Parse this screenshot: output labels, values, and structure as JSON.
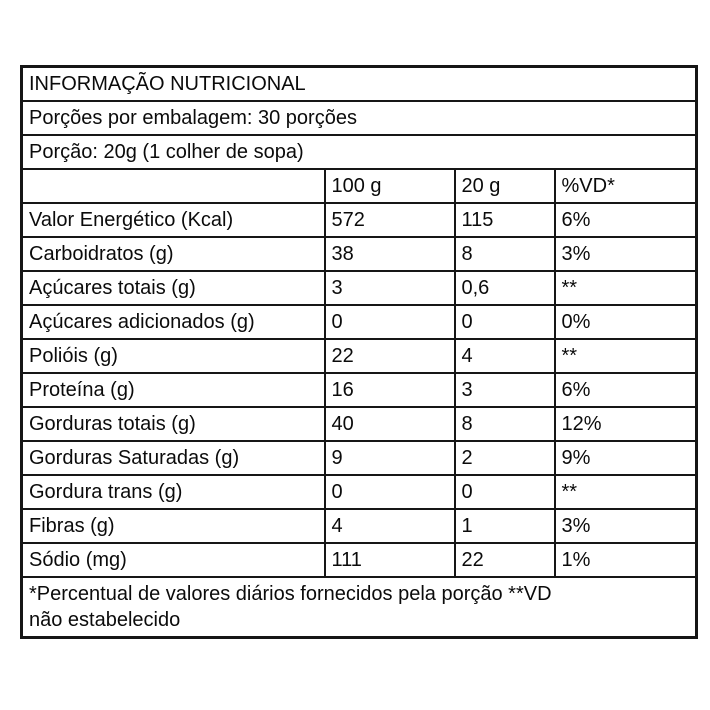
{
  "title": "INFORMAÇÃO NUTRICIONAL",
  "servings_line": "Porções por embalagem: 30 porções",
  "portion_line": "Porção: 20g (1 colher de sopa)",
  "columns": {
    "label": "",
    "per100": "100 g",
    "per20": "20 g",
    "vd": "%VD*"
  },
  "rows": [
    {
      "label": "Valor Energético (Kcal)",
      "per100": "572",
      "per20": "115",
      "vd": "6%",
      "indent": 0
    },
    {
      "label": "Carboidratos (g)",
      "per100": "38",
      "per20": "8",
      "vd": "3%",
      "indent": 0
    },
    {
      "label": "Açúcares totais (g)",
      "per100": "3",
      "per20": "0,6",
      "vd": "**",
      "indent": 1
    },
    {
      "label": "Açúcares adicionados (g)",
      "per100": "0",
      "per20": "0",
      "vd": "0%",
      "indent": 2
    },
    {
      "label": "Polióis (g)",
      "per100": "22",
      "per20": "4",
      "vd": "**",
      "indent": 0
    },
    {
      "label": "Proteína (g)",
      "per100": "16",
      "per20": "3",
      "vd": "6%",
      "indent": 0
    },
    {
      "label": "Gorduras totais (g)",
      "per100": "40",
      "per20": "8",
      "vd": "12%",
      "indent": 0
    },
    {
      "label": "Gorduras Saturadas (g)",
      "per100": "9",
      "per20": "2",
      "vd": "9%",
      "indent": 1
    },
    {
      "label": "Gordura trans (g)",
      "per100": "0",
      "per20": "0",
      "vd": "**",
      "indent": 1
    },
    {
      "label": "Fibras (g)",
      "per100": "4",
      "per20": "1",
      "vd": "3%",
      "indent": 0
    },
    {
      "label": "Sódio (mg)",
      "per100": "111",
      "per20": "22",
      "vd": "1%",
      "indent": 0
    }
  ],
  "footnote": {
    "line1": "*Percentual de valores diários fornecidos pela porção **VD",
    "line2": "não estabelecido"
  },
  "colors": {
    "border": "#161616",
    "text": "#0b0b0b",
    "background": "#ffffff"
  }
}
